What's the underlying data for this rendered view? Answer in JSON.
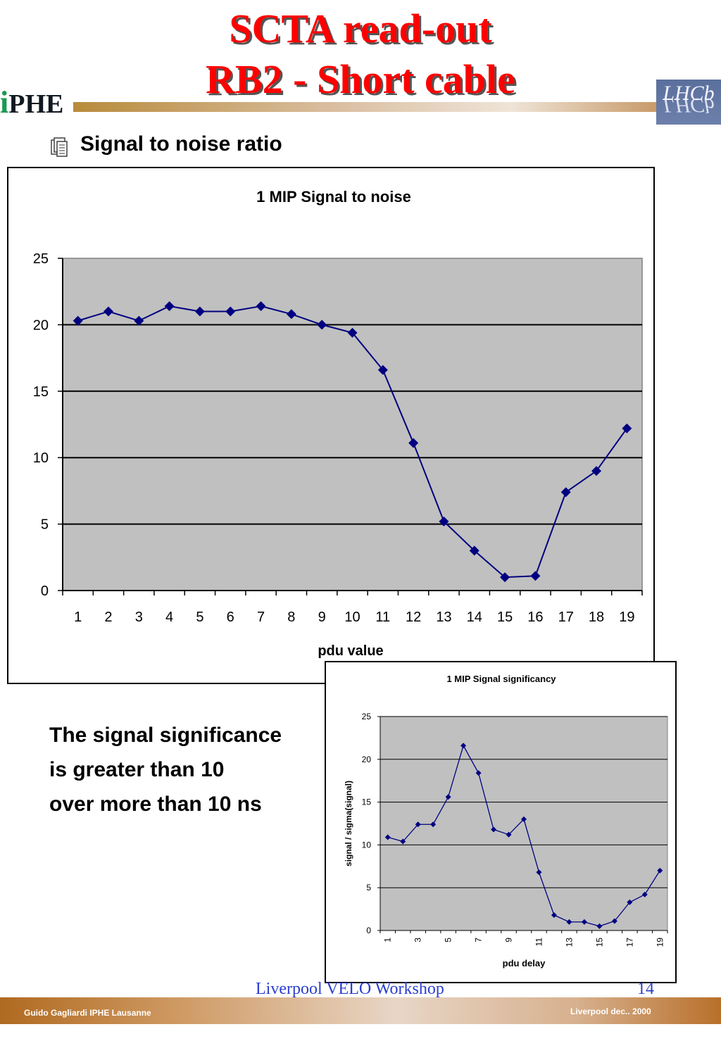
{
  "header": {
    "title_line1": "SCTA read-out",
    "title_line2": "RB2 - Short cable",
    "logo_left_i": "i",
    "logo_left_rest": "PHE",
    "logo_right": "LHCb",
    "title_color": "#ff0000"
  },
  "bullet": {
    "icon": "document-stack-icon",
    "text": "Signal to noise ratio"
  },
  "note": {
    "line1": "The signal significance",
    "line2": "is greater than 10",
    "line3": "over more than 10 ns"
  },
  "footer": {
    "link": "Liverpool VELO Workshop",
    "page": "14",
    "author": "Guido Gagliardi  IPHE Lausanne",
    "date": "Liverpool dec.. 2000"
  },
  "chart_data": [
    {
      "type": "line",
      "title": "1 MIP Signal to noise",
      "xlabel": "pdu value",
      "ylabel": "",
      "categories": [
        "1",
        "2",
        "3",
        "4",
        "5",
        "6",
        "7",
        "8",
        "9",
        "10",
        "11",
        "12",
        "13",
        "14",
        "15",
        "16",
        "17",
        "18",
        "19"
      ],
      "values": [
        20.3,
        21.0,
        20.3,
        21.4,
        21.0,
        21.0,
        21.4,
        20.8,
        20.0,
        19.4,
        16.6,
        11.1,
        5.2,
        3.0,
        1.0,
        1.1,
        7.4,
        9.0,
        12.2
      ],
      "ylim": [
        0,
        25
      ],
      "yticks": [
        "0",
        "5",
        "10",
        "15",
        "20",
        "25"
      ],
      "grid": true,
      "plot_background": "#c0c0c0",
      "series_color": "#000080"
    },
    {
      "type": "line",
      "title": "1 MIP Signal significancy",
      "xlabel": "pdu delay",
      "ylabel": "signal / sigma(signal)",
      "x": [
        1,
        2,
        3,
        4,
        5,
        6,
        7,
        8,
        9,
        10,
        11,
        12,
        13,
        14,
        15,
        16,
        17,
        18,
        19
      ],
      "xticklabels": [
        "1",
        "3",
        "5",
        "7",
        "9",
        "11",
        "13",
        "15",
        "17",
        "19"
      ],
      "values": [
        10.9,
        10.4,
        12.4,
        12.4,
        15.6,
        21.6,
        18.4,
        11.8,
        11.2,
        13.0,
        6.8,
        1.8,
        1.0,
        1.0,
        0.5,
        1.1,
        3.3,
        4.2,
        7.0
      ],
      "ylim": [
        0,
        25
      ],
      "yticks": [
        "0",
        "5",
        "10",
        "15",
        "20",
        "25"
      ],
      "grid": true,
      "plot_background": "#c0c0c0",
      "series_color": "#000080"
    }
  ]
}
